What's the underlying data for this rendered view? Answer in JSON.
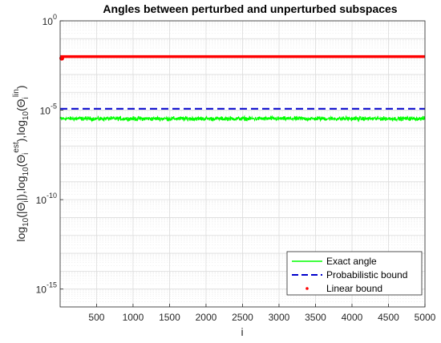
{
  "chart_data": {
    "type": "line",
    "title": "Angles between perturbed and unperturbed subspaces",
    "xlabel": "i",
    "ylabel": "log10(|Θi|), log10(Θi^est), log10(Θi^lin)",
    "xlim": [
      1,
      5000
    ],
    "ylim": [
      1e-16,
      1
    ],
    "yscale": "log",
    "grid": true,
    "legend_position": "bottom-right",
    "x_ticks": [
      500,
      1000,
      1500,
      2000,
      2500,
      3000,
      3500,
      4000,
      4500,
      5000
    ],
    "y_ticks": [
      {
        "value": 1,
        "base": "10",
        "exp": "0"
      },
      {
        "value": 1e-05,
        "base": "10",
        "exp": "-5"
      },
      {
        "value": 1e-10,
        "base": "10",
        "exp": "-10"
      },
      {
        "value": 1e-15,
        "base": "10",
        "exp": "-15"
      }
    ],
    "series": [
      {
        "name": "Exact angle",
        "style": "solid",
        "color": "#00ff00",
        "x_range": [
          1,
          5000
        ],
        "value_band": [
          2.3e-06,
          5e-06
        ]
      },
      {
        "name": "Probabilistic bound",
        "style": "dashed",
        "color": "#0000cc",
        "x_range": [
          1,
          5000
        ],
        "value": 1.2e-05
      },
      {
        "name": "Linear bound",
        "style": "dots",
        "color": "#ff0000",
        "x_range": [
          1,
          5000
        ],
        "value": 0.01
      }
    ]
  }
}
